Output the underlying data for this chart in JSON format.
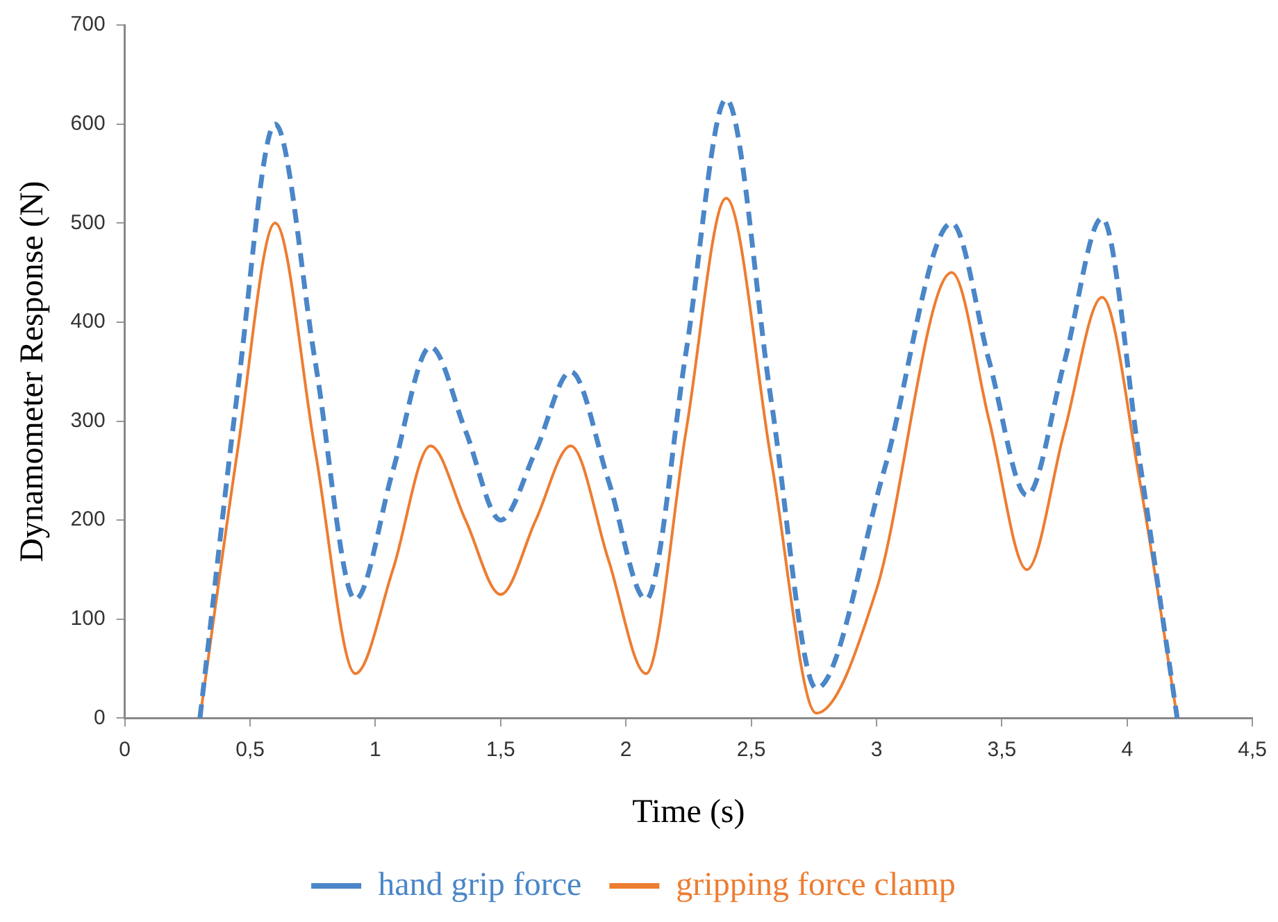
{
  "chart_data": {
    "type": "line",
    "xlabel": "Time (s)",
    "ylabel": "Dynamometer Response (N)",
    "xlim": [
      0,
      4.5
    ],
    "ylim": [
      0,
      700
    ],
    "xticks": [
      0,
      {
        "value": 0.5,
        "label": "0,5"
      },
      1,
      {
        "value": 1.5,
        "label": "1,5"
      },
      2,
      {
        "value": 2.5,
        "label": "2,5"
      },
      3,
      {
        "value": 3.5,
        "label": "3,5"
      },
      4,
      {
        "value": 4.5,
        "label": "4,5"
      }
    ],
    "yticks": [
      0,
      100,
      200,
      300,
      400,
      500,
      600,
      700
    ],
    "grid": false,
    "legend": "bottom",
    "marker": "none",
    "series": [
      {
        "name": "hand grip force",
        "color": "#4a86c8",
        "line_style": "dashed",
        "x": [
          0.3,
          0.45,
          0.6,
          0.76,
          0.92,
          1.07,
          1.22,
          1.36,
          1.5,
          1.64,
          1.78,
          1.93,
          2.08,
          2.24,
          2.4,
          2.58,
          2.76,
          3.03,
          3.3,
          3.45,
          3.6,
          3.75,
          3.9,
          4.05,
          4.2
        ],
        "values": [
          0,
          330,
          600,
          360,
          120,
          250,
          375,
          290,
          200,
          270,
          350,
          240,
          120,
          370,
          625,
          320,
          30,
          250,
          500,
          360,
          225,
          360,
          505,
          260,
          0
        ]
      },
      {
        "name": "gripping force clamp",
        "color": "#ed7d31",
        "line_style": "solid",
        "x": [
          0.3,
          0.45,
          0.6,
          0.76,
          0.92,
          1.07,
          1.22,
          1.36,
          1.5,
          1.64,
          1.78,
          1.93,
          2.08,
          2.24,
          2.4,
          2.58,
          2.76,
          3.0,
          3.3,
          3.45,
          3.6,
          3.75,
          3.9,
          4.05,
          4.2
        ],
        "values": [
          0,
          270,
          500,
          270,
          45,
          150,
          275,
          200,
          125,
          200,
          275,
          160,
          45,
          290,
          525,
          260,
          5,
          130,
          450,
          300,
          150,
          290,
          425,
          240,
          0
        ]
      }
    ]
  }
}
